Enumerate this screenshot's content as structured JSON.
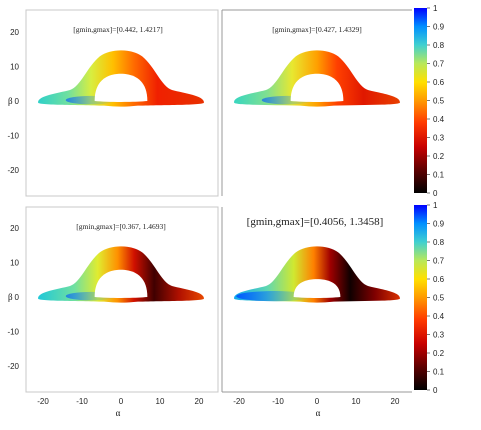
{
  "chart_data": {
    "type": "heatmap",
    "description_free": true,
    "panels": [
      {
        "title": "[gmin,gmax]=[0.442, 1.4217]",
        "gmin": 0.442,
        "gmax": 1.4217
      },
      {
        "title": "[gmin,gmax]=[0.427, 1.4329]",
        "gmin": 0.427,
        "gmax": 1.4329
      },
      {
        "title": "[gmin,gmax]=[0.367, 1.4693]",
        "gmin": 0.367,
        "gmax": 1.4693
      },
      {
        "title": "[gmin,gmax]=[0.4056, 1.3458]",
        "gmin": 0.4056,
        "gmax": 1.3458
      }
    ],
    "xlabel": "α",
    "ylabel": "β",
    "xlim": [
      -24,
      24
    ],
    "ylim": [
      -25,
      25
    ],
    "xticks": [
      "-20",
      "-10",
      "0",
      "10",
      "20"
    ],
    "yticks": [
      "20",
      "10",
      "0",
      "-10",
      "-20"
    ],
    "colorbar": {
      "ticks": [
        "1",
        "0.9",
        "0.8",
        "0.7",
        "0.6",
        "0.5",
        "0.4",
        "0.3",
        "0.2",
        "0.1",
        "0"
      ],
      "range": [
        0,
        1
      ]
    }
  }
}
